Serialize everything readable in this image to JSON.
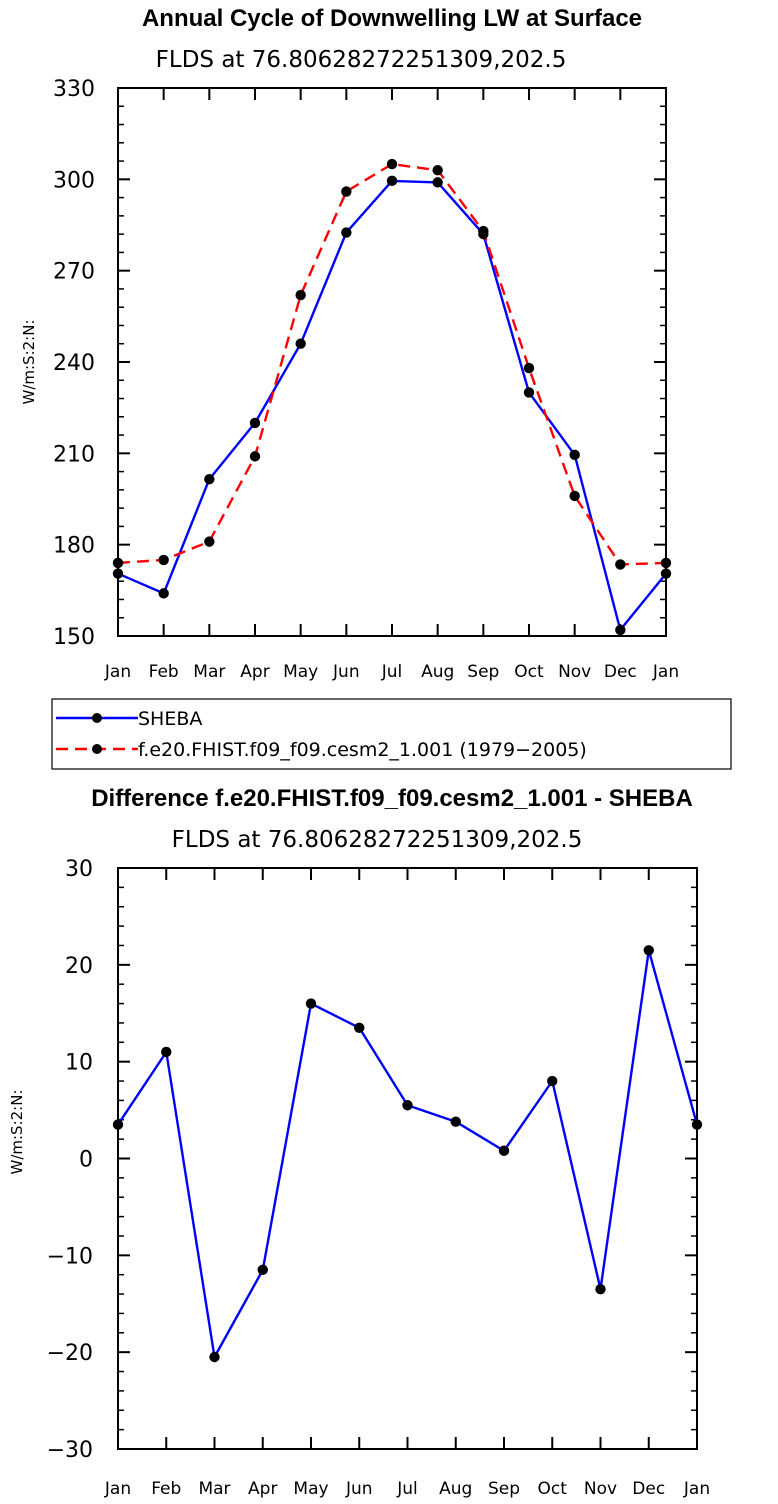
{
  "chart_data": [
    {
      "type": "line",
      "title": "Annual Cycle of Downwelling LW at Surface",
      "subtitle": "FLDS at 76.80628272251309,202.5",
      "ylabel": "W/m:S:2:N:",
      "xlabel": "",
      "categories": [
        "Jan",
        "Feb",
        "Mar",
        "Apr",
        "May",
        "Jun",
        "Jul",
        "Aug",
        "Sep",
        "Oct",
        "Nov",
        "Dec",
        "Jan"
      ],
      "ylim": [
        150,
        330
      ],
      "yticks": [
        150,
        180,
        210,
        240,
        270,
        300,
        330
      ],
      "series": [
        {
          "name": "SHEBA",
          "color": "#0000ff",
          "dash": "solid",
          "values": [
            170.5,
            164.0,
            201.5,
            220.0,
            246.0,
            282.5,
            299.5,
            299.0,
            282.0,
            230.0,
            209.5,
            152.0,
            170.5
          ]
        },
        {
          "name": "f.e20.FHIST.f09_f09.cesm2_1.001 (1979−2005)",
          "color": "#ff0000",
          "dash": "dashed",
          "values": [
            174.0,
            175.0,
            181.0,
            209.0,
            262.0,
            296.0,
            305.0,
            303.0,
            283.0,
            238.0,
            196.0,
            173.5,
            174.0
          ]
        }
      ],
      "legend": "bottom-left"
    },
    {
      "type": "line",
      "title": "Difference f.e20.FHIST.f09_f09.cesm2_1.001 - SHEBA",
      "subtitle": "FLDS at 76.80628272251309,202.5",
      "ylabel": "W/m:S:2:N:",
      "xlabel": "",
      "categories": [
        "Jan",
        "Feb",
        "Mar",
        "Apr",
        "May",
        "Jun",
        "Jul",
        "Aug",
        "Sep",
        "Oct",
        "Nov",
        "Dec",
        "Jan"
      ],
      "ylim": [
        -30,
        30
      ],
      "yticks": [
        -30,
        -20,
        -10,
        0,
        10,
        20,
        30
      ],
      "series": [
        {
          "name": "Difference",
          "color": "#0000ff",
          "dash": "solid",
          "values": [
            3.5,
            11.0,
            -20.5,
            -11.5,
            16.0,
            13.5,
            5.5,
            3.8,
            0.8,
            8.0,
            -13.5,
            21.5,
            3.5
          ]
        }
      ]
    }
  ]
}
